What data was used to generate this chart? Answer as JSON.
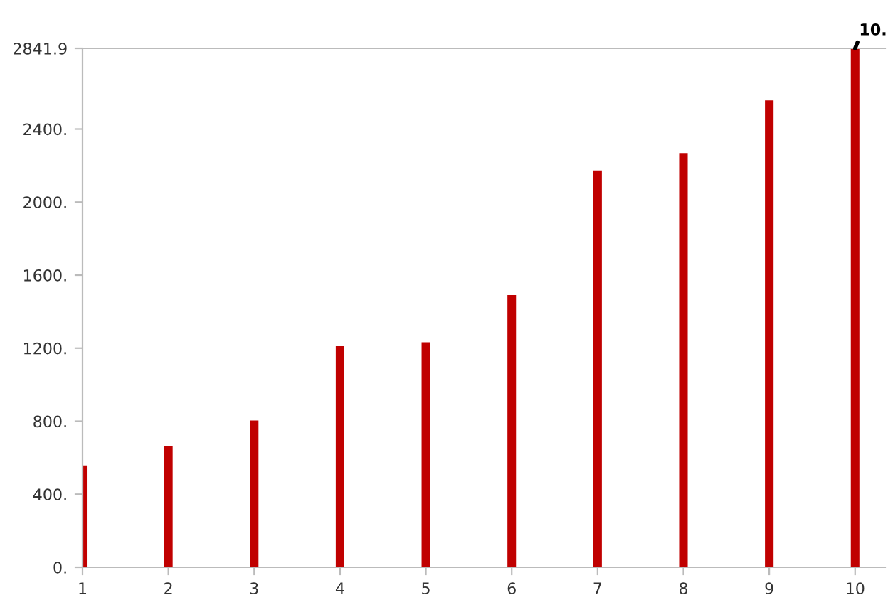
{
  "chart_data": {
    "type": "bar",
    "x": [
      1,
      2,
      3,
      4,
      5,
      6,
      7,
      8,
      9,
      10
    ],
    "values": [
      558,
      664,
      804,
      1211,
      1232,
      1491,
      2173,
      2269,
      2557,
      2841.9
    ],
    "color": "#c00000",
    "xlim": [
      1,
      10.35
    ],
    "xticks": [
      1,
      2,
      3,
      4,
      5,
      6,
      7,
      8,
      9,
      10
    ],
    "ylim": [
      0,
      2841.9
    ],
    "yticks": [
      {
        "value": 0,
        "label": "0."
      },
      {
        "value": 400,
        "label": "400."
      },
      {
        "value": 800,
        "label": "800."
      },
      {
        "value": 1200,
        "label": "1200."
      },
      {
        "value": 1600,
        "label": "1600."
      },
      {
        "value": 2000,
        "label": "2000."
      },
      {
        "value": 2400,
        "label": "2400."
      },
      2841.9
    ],
    "annotations": [
      {
        "text": "10.",
        "x": 10,
        "y": 2841.9
      }
    ],
    "grid": false
  }
}
